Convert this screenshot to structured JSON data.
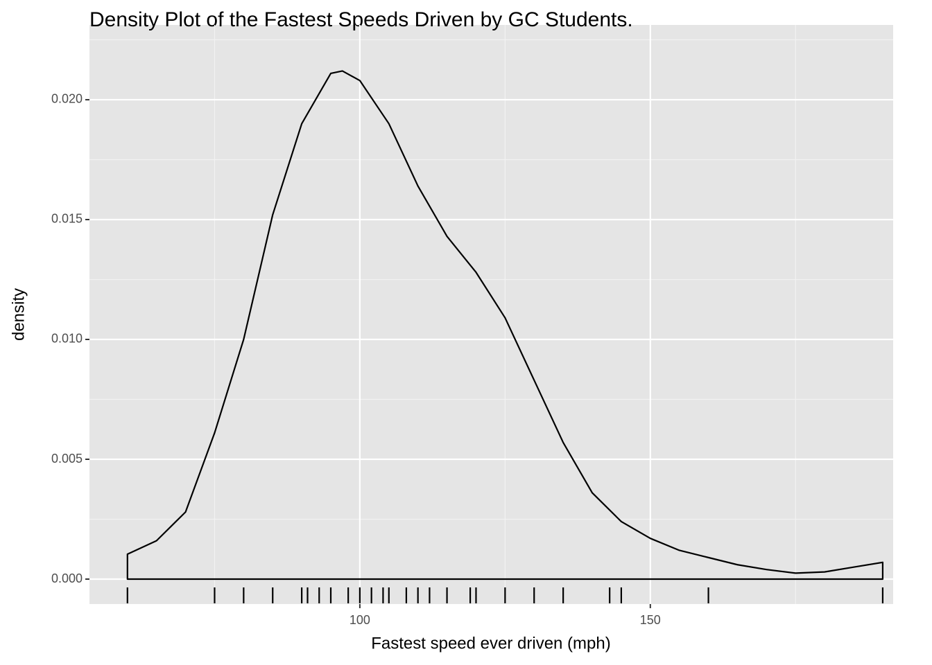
{
  "chart_data": {
    "type": "density",
    "title": "Density Plot of the Fastest Speeds Driven by GC Students.",
    "x_label": "Fastest speed ever driven (mph)",
    "y_label": "density",
    "x": [
      60,
      65,
      70,
      75,
      80,
      85,
      90,
      95,
      97,
      100,
      105,
      110,
      115,
      120,
      125,
      130,
      135,
      140,
      145,
      150,
      155,
      160,
      165,
      170,
      175,
      180,
      185,
      190
    ],
    "values": [
      0.00104,
      0.0016,
      0.0028,
      0.0061,
      0.01,
      0.0152,
      0.019,
      0.0211,
      0.0212,
      0.0208,
      0.019,
      0.0164,
      0.0143,
      0.0128,
      0.0109,
      0.0083,
      0.0057,
      0.0036,
      0.0024,
      0.0017,
      0.0012,
      0.0009,
      0.0006,
      0.0004,
      0.00025,
      0.0003,
      0.0005,
      0.0007
    ],
    "rug": [
      60,
      75,
      80,
      85,
      90,
      91,
      93,
      95,
      98,
      100,
      102,
      104,
      105,
      108,
      110,
      112,
      115,
      119,
      120,
      125,
      130,
      135,
      143,
      145,
      160,
      190
    ],
    "color": "#000000",
    "xlim": [
      53.46,
      191.8
    ],
    "ylim": [
      -0.00104,
      0.02312
    ],
    "xticks": [
      100,
      150
    ],
    "yticks": [
      {
        "value": 0,
        "label": "0.000"
      },
      {
        "value": 0.005,
        "label": "0.005"
      },
      {
        "value": 0.01,
        "label": "0.010"
      },
      {
        "value": 0.015,
        "label": "0.015"
      },
      {
        "value": 0.02,
        "label": "0.020"
      }
    ],
    "grid": true
  }
}
